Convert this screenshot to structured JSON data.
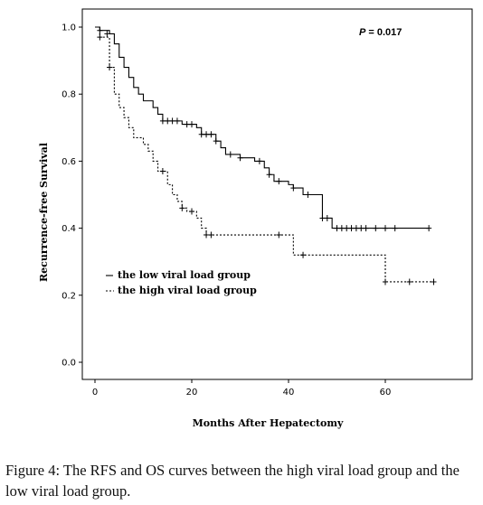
{
  "chart_data": {
    "type": "line",
    "subtype": "kaplan-meier step",
    "title": "",
    "xlabel": "Months After Hepatectomy",
    "ylabel": "Recurrence-free Survival",
    "xlim": [
      0,
      70
    ],
    "ylim": [
      0,
      1.0
    ],
    "x_ticks": [
      0,
      20,
      40,
      60
    ],
    "y_ticks": [
      0.0,
      0.2,
      0.4,
      0.6,
      0.8,
      1.0
    ],
    "x_tick_labels": [
      "0",
      "20",
      "40",
      "60"
    ],
    "y_tick_labels": [
      "0.0",
      "0.2",
      "0.4",
      "0.6",
      "0.8",
      "1.0"
    ],
    "grid": false,
    "legend_position": "bottom-left",
    "annotation": {
      "p_label": "P",
      "p_value": "= 0.017"
    },
    "series": [
      {
        "name": "the low viral load group",
        "style": "solid",
        "color": "#000000",
        "steps": [
          [
            0,
            1.0
          ],
          [
            1,
            0.99
          ],
          [
            3,
            0.98
          ],
          [
            4,
            0.95
          ],
          [
            5,
            0.91
          ],
          [
            6,
            0.88
          ],
          [
            7,
            0.85
          ],
          [
            8,
            0.82
          ],
          [
            9,
            0.8
          ],
          [
            10,
            0.78
          ],
          [
            12,
            0.76
          ],
          [
            13,
            0.74
          ],
          [
            14,
            0.72
          ],
          [
            18,
            0.71
          ],
          [
            21,
            0.7
          ],
          [
            22,
            0.68
          ],
          [
            25,
            0.66
          ],
          [
            26,
            0.64
          ],
          [
            27,
            0.62
          ],
          [
            30,
            0.61
          ],
          [
            33,
            0.6
          ],
          [
            35,
            0.58
          ],
          [
            36,
            0.56
          ],
          [
            37,
            0.54
          ],
          [
            40,
            0.53
          ],
          [
            41,
            0.52
          ],
          [
            43,
            0.5
          ],
          [
            47,
            0.43
          ],
          [
            49,
            0.4
          ],
          [
            69,
            0.4
          ]
        ],
        "censored": [
          [
            1,
            0.99
          ],
          [
            2.5,
            0.98
          ],
          [
            14,
            0.72
          ],
          [
            15,
            0.72
          ],
          [
            16,
            0.72
          ],
          [
            17,
            0.72
          ],
          [
            19,
            0.71
          ],
          [
            20,
            0.71
          ],
          [
            22,
            0.68
          ],
          [
            23,
            0.68
          ],
          [
            24,
            0.68
          ],
          [
            25,
            0.66
          ],
          [
            28,
            0.62
          ],
          [
            30,
            0.61
          ],
          [
            34,
            0.6
          ],
          [
            36,
            0.56
          ],
          [
            38,
            0.54
          ],
          [
            41,
            0.52
          ],
          [
            44,
            0.5
          ],
          [
            47,
            0.43
          ],
          [
            48,
            0.43
          ],
          [
            50,
            0.4
          ],
          [
            51,
            0.4
          ],
          [
            52,
            0.4
          ],
          [
            53,
            0.4
          ],
          [
            54,
            0.4
          ],
          [
            55,
            0.4
          ],
          [
            56,
            0.4
          ],
          [
            58,
            0.4
          ],
          [
            60,
            0.4
          ],
          [
            62,
            0.4
          ],
          [
            69,
            0.4
          ]
        ]
      },
      {
        "name": "the high viral load group",
        "style": "dashed",
        "color": "#000000",
        "steps": [
          [
            0,
            1.0
          ],
          [
            1,
            0.97
          ],
          [
            3,
            0.88
          ],
          [
            4,
            0.8
          ],
          [
            5,
            0.76
          ],
          [
            6,
            0.73
          ],
          [
            7,
            0.7
          ],
          [
            8,
            0.67
          ],
          [
            10,
            0.65
          ],
          [
            11,
            0.63
          ],
          [
            12,
            0.6
          ],
          [
            13,
            0.57
          ],
          [
            15,
            0.53
          ],
          [
            16,
            0.5
          ],
          [
            17,
            0.48
          ],
          [
            18,
            0.46
          ],
          [
            19,
            0.45
          ],
          [
            21,
            0.43
          ],
          [
            22,
            0.4
          ],
          [
            23,
            0.38
          ],
          [
            41,
            0.32
          ],
          [
            60,
            0.24
          ],
          [
            70,
            0.24
          ]
        ],
        "censored": [
          [
            1,
            0.97
          ],
          [
            3,
            0.88
          ],
          [
            14,
            0.57
          ],
          [
            18,
            0.46
          ],
          [
            20,
            0.45
          ],
          [
            23,
            0.38
          ],
          [
            24,
            0.38
          ],
          [
            38,
            0.38
          ],
          [
            43,
            0.32
          ],
          [
            60,
            0.24
          ],
          [
            65,
            0.24
          ],
          [
            70,
            0.24
          ]
        ]
      }
    ]
  },
  "caption": {
    "label": "Figure 4:",
    "text": " The RFS and OS curves between the high viral load group and the low viral load group."
  }
}
